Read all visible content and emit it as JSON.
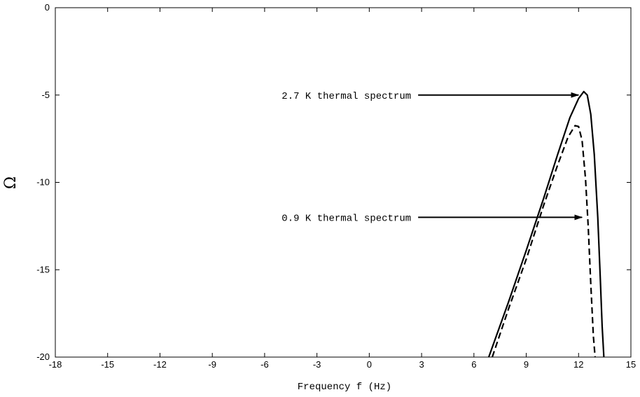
{
  "chart_data": {
    "type": "line",
    "title": "",
    "xlabel": "Frequency f (Hz)",
    "ylabel": "Ω",
    "xlim": [
      -18,
      15
    ],
    "ylim": [
      -20,
      0
    ],
    "x_ticks": [
      -18,
      -15,
      -12,
      -9,
      -6,
      -3,
      0,
      3,
      6,
      9,
      12,
      15
    ],
    "y_ticks": [
      0,
      -5,
      -10,
      -15,
      -20
    ],
    "grid": false,
    "legend": "none",
    "series": [
      {
        "style": "solid",
        "color": "#000000",
        "x": [
          6.85,
          8.0,
          9.0,
          10.0,
          10.8,
          11.5,
          12.0,
          12.3,
          12.5,
          12.7,
          12.9,
          13.1,
          13.25,
          13.35,
          13.45
        ],
        "y": [
          -20.0,
          -16.8,
          -13.9,
          -10.9,
          -8.4,
          -6.3,
          -5.2,
          -4.8,
          -5.0,
          -6.1,
          -8.4,
          -12.0,
          -15.6,
          -18.2,
          -20.0
        ]
      },
      {
        "style": "dashed",
        "color": "#000000",
        "x": [
          7.05,
          8.0,
          9.0,
          10.0,
          10.8,
          11.4,
          11.8,
          12.0,
          12.2,
          12.4,
          12.55,
          12.7,
          12.85,
          12.95
        ],
        "y": [
          -20.0,
          -17.2,
          -14.4,
          -11.3,
          -9.0,
          -7.4,
          -6.75,
          -6.8,
          -7.6,
          -9.8,
          -12.5,
          -15.8,
          -18.8,
          -20.0
        ]
      }
    ],
    "annotations": [
      {
        "text": "2.7 K thermal spectrum",
        "x": 2.4,
        "y": -5.0,
        "arrow_to": [
          12.0,
          -5.0
        ]
      },
      {
        "text": "0.9 K thermal spectrum",
        "x": 2.4,
        "y": -12.0,
        "arrow_to": [
          12.2,
          -12.0
        ]
      }
    ]
  }
}
